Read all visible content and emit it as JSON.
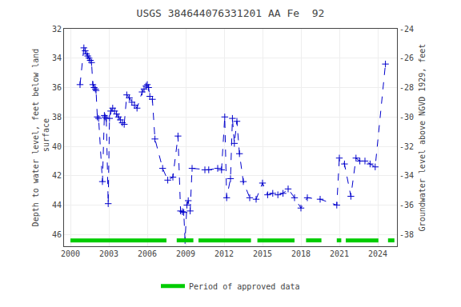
{
  "chart_data": {
    "type": "line",
    "title": "USGS 384644076331201 AA Fe  92",
    "ylabel": "Depth to water level, feet below land\n surface",
    "y2label": "Groundwater level above NGVD 1929, feet",
    "xlim": [
      1999.5,
      2025.5
    ],
    "xticks": [
      2000,
      2003,
      2006,
      2009,
      2012,
      2015,
      2018,
      2021,
      2024
    ],
    "ylim": [
      46.8,
      32.0
    ],
    "yticks": [
      32,
      34,
      36,
      38,
      40,
      42,
      44,
      46
    ],
    "y2lim": [
      -38.8,
      -24.0
    ],
    "y2ticks": [
      -24,
      -26,
      -28,
      -30,
      -32,
      -34,
      -36,
      -38
    ],
    "grid": true,
    "legend": "bottom",
    "x": [
      2000.75,
      2001.05,
      2001.15,
      2001.25,
      2001.35,
      2001.45,
      2001.55,
      2001.65,
      2001.75,
      2001.85,
      2001.95,
      2002.0,
      2002.1,
      2002.2,
      2002.5,
      2002.65,
      2002.7,
      2002.8,
      2002.95,
      2003.05,
      2003.15,
      2003.3,
      2003.45,
      2003.6,
      2003.75,
      2003.9,
      2004.05,
      2004.2,
      2004.4,
      2004.6,
      2004.8,
      2005.0,
      2005.2,
      2005.6,
      2005.75,
      2005.9,
      2006.0,
      2006.1,
      2006.2,
      2006.4,
      2006.6,
      2007.2,
      2007.6,
      2008.0,
      2008.4,
      2008.6,
      2008.75,
      2008.85,
      2008.95,
      2009.1,
      2009.2,
      2009.35,
      2009.5,
      2010.5,
      2010.8,
      2011.5,
      2011.8,
      2012.05,
      2012.2,
      2012.5,
      2012.65,
      2012.8,
      2013.0,
      2013.2,
      2013.5,
      2014.0,
      2014.5,
      2015.0,
      2015.4,
      2015.8,
      2016.2,
      2016.6,
      2017.0,
      2017.5,
      2018.0,
      2018.5,
      2019.5,
      2020.8,
      2021.0,
      2021.4,
      2021.9,
      2022.3,
      2022.6,
      2023.0,
      2023.4,
      2023.8,
      2024.6
    ],
    "series": [
      {
        "color": "#0000cc",
        "line_style": "dashed",
        "marker": "plus",
        "values": [
          35.8,
          33.3,
          33.5,
          33.7,
          33.85,
          34.0,
          34.15,
          34.3,
          35.8,
          36.0,
          36.1,
          36.2,
          38.0,
          38.1,
          42.4,
          37.9,
          38.0,
          38.1,
          43.9,
          38.1,
          37.6,
          37.4,
          37.6,
          37.8,
          38.0,
          38.2,
          38.4,
          38.5,
          36.5,
          36.7,
          37.0,
          37.2,
          37.4,
          36.3,
          36.1,
          35.9,
          35.8,
          36.0,
          36.6,
          36.8,
          39.5,
          41.5,
          42.3,
          42.1,
          39.3,
          44.4,
          44.45,
          44.5,
          46.4,
          44.0,
          43.7,
          44.4,
          41.5,
          41.6,
          41.6,
          41.5,
          41.6,
          38.0,
          43.5,
          42.2,
          38.1,
          39.8,
          38.3,
          40.5,
          42.4,
          43.5,
          43.6,
          42.5,
          43.3,
          43.2,
          43.3,
          43.2,
          42.9,
          43.5,
          44.2,
          43.5,
          43.6,
          44.0,
          40.8,
          41.2,
          43.4,
          40.8,
          41.0,
          41.0,
          41.2,
          41.4,
          34.4
        ]
      }
    ],
    "periods": {
      "name": "Period of approved data",
      "color": "#00cc00",
      "ranges": [
        [
          2000.0,
          2007.5
        ],
        [
          2008.3,
          2009.6
        ],
        [
          2010.0,
          2014.1
        ],
        [
          2014.6,
          2017.5
        ],
        [
          2018.4,
          2019.6
        ],
        [
          2020.8,
          2021.15
        ],
        [
          2021.5,
          2024.05
        ],
        [
          2024.8,
          2025.3
        ]
      ]
    }
  }
}
